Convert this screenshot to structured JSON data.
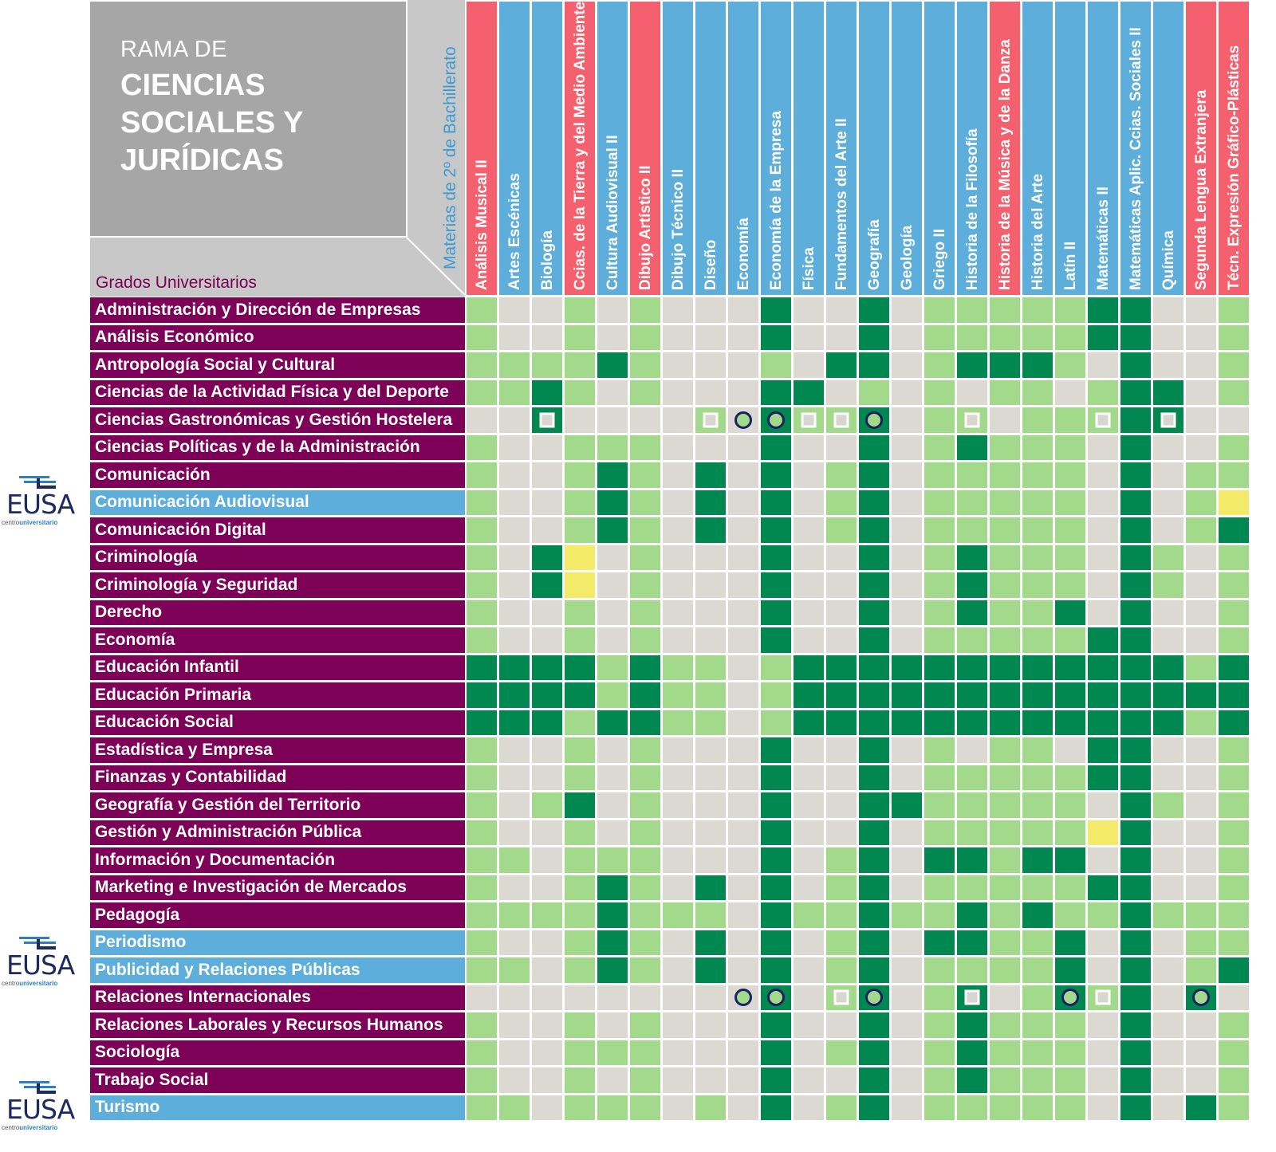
{
  "header": {
    "title_line1": "RAMA DE",
    "title_line2": "CIENCIAS SOCIALES Y JURÍDICAS",
    "rows_label": "Grados Universitarios",
    "columns_label": "Materias de 2º de Bachillerato"
  },
  "colors": {
    "none": "#dcd8d2",
    "light": "#a2d98b",
    "dark": "#008850",
    "yellow": "#f3ea6a",
    "col_blue": "#5eaedc",
    "col_red": "#f4606e",
    "row_purple": "#7e0158",
    "row_blue": "#5eaedc"
  },
  "logo": {
    "name": "EUSA",
    "sub_prefix": "centro",
    "sub_bold": "universitario"
  },
  "chart_data": {
    "type": "heatmap",
    "title": "RAMA DE CIENCIAS SOCIALES Y JURÍDICAS",
    "xlabel": "Materias de 2º de Bachillerato",
    "ylabel": "Grados Universitarios",
    "legend_codes": {
      "G": "none",
      "L": "light",
      "D": "dark",
      "Y": "yellow"
    },
    "columns": [
      {
        "name": "Análisis Musical II",
        "color": "red"
      },
      {
        "name": "Artes Escénicas",
        "color": "blue"
      },
      {
        "name": "Biología",
        "color": "blue"
      },
      {
        "name": "Ccias. de la Tierra y del Medio Ambiente",
        "color": "red"
      },
      {
        "name": "Cultura Audiovisual II",
        "color": "blue"
      },
      {
        "name": "Dibujo Artístico II",
        "color": "red"
      },
      {
        "name": "Dibujo Técnico II",
        "color": "blue"
      },
      {
        "name": "Diseño",
        "color": "blue"
      },
      {
        "name": "Economía",
        "color": "blue"
      },
      {
        "name": "Economía de la Empresa",
        "color": "blue"
      },
      {
        "name": "Física",
        "color": "blue"
      },
      {
        "name": "Fundamentos del Arte II",
        "color": "blue"
      },
      {
        "name": "Geografía",
        "color": "blue"
      },
      {
        "name": "Geología",
        "color": "blue"
      },
      {
        "name": "Griego II",
        "color": "blue"
      },
      {
        "name": "Historia de la Filosofía",
        "color": "blue"
      },
      {
        "name": "Historia de la Música y de la Danza",
        "color": "red"
      },
      {
        "name": "Historia del Arte",
        "color": "blue"
      },
      {
        "name": "Latín II",
        "color": "blue"
      },
      {
        "name": "Matemáticas II",
        "color": "blue"
      },
      {
        "name": "Matemáticas Aplic. Ccias. Sociales II",
        "color": "blue"
      },
      {
        "name": "Química",
        "color": "blue"
      },
      {
        "name": "Segunda Lengua Extranjera",
        "color": "red"
      },
      {
        "name": "Técn. Expresión Gráfico-Plásticas",
        "color": "red"
      }
    ],
    "rows": [
      {
        "name": "Administración y Dirección de Empresas",
        "color": "purple",
        "cells": "LGGLGLGGGDGGDGLLLLLDDGGL"
      },
      {
        "name": "Análisis Económico",
        "color": "purple",
        "cells": "LGGLGLGGGDGGDGLLLLLDDGGL"
      },
      {
        "name": "Antropología Social y Cultural",
        "color": "purple",
        "cells": "LLLLDLGGGLGDDGLDDDLGDGGL"
      },
      {
        "name": "Ciencias de la Actividad Física y del Deporte",
        "color": "purple",
        "cells": "LLDLGLGGGDDGLGLGLLGLDDGL"
      },
      {
        "name": "Ciencias Gastronómicas y Gestión Hostelera",
        "color": "purple",
        "cells": "GGDGGGGLGDLLDGLLGLLLDDGG",
        "markers": {
          "2": "square",
          "7": "square",
          "8": "circle",
          "9": "circle",
          "10": "square",
          "11": "square",
          "12": "circle",
          "15": "square",
          "19": "square",
          "21": "square"
        }
      },
      {
        "name": "Ciencias Políticas y de la Administración",
        "color": "purple",
        "cells": "LGGLLLGGGDGGDGLDLLLGDGGL"
      },
      {
        "name": "Comunicación",
        "color": "purple",
        "cells": "LGGLDLGDGDGLDGLLLLLGDGLL"
      },
      {
        "name": "Comunicación Audiovisual",
        "color": "blue",
        "cells": "LGGLDLGDGDGLDGLLLLLGDGLY"
      },
      {
        "name": "Comunicación Digital",
        "color": "purple",
        "cells": "LGGLDLGDGDGLDGLLLLLGDGLD"
      },
      {
        "name": "Criminología",
        "color": "purple",
        "cells": "LGDYGLGGGDGGDGLDLLLGDLGL"
      },
      {
        "name": "Criminología y Seguridad",
        "color": "purple",
        "cells": "LGDYGLGGGDGGDGLDLLLGDLGL"
      },
      {
        "name": "Derecho",
        "color": "purple",
        "cells": "LGGLGLGGGDGGDGLDLLDGDGGL"
      },
      {
        "name": "Economía",
        "color": "purple",
        "cells": "LGGLGLGGGDGGDGLLLLLDDGGL"
      },
      {
        "name": "Educación Infantil",
        "color": "purple",
        "cells": "DDDDLDLLGLDDDDDDDDDDDDLD"
      },
      {
        "name": "Educación Primaria",
        "color": "purple",
        "cells": "DDDDLDLLGLDDDDDDDDDDDDDD"
      },
      {
        "name": "Educación Social",
        "color": "purple",
        "cells": "DDDLDDLLGLDDDDDDDDDDDDLD"
      },
      {
        "name": "Estadística y Empresa",
        "color": "purple",
        "cells": "LGGLGLGGGDGGDGLGLLGDDGGL"
      },
      {
        "name": "Finanzas y Contabilidad",
        "color": "purple",
        "cells": "LGGLGLGGGDGGDGLLLLLDDGGL"
      },
      {
        "name": "Geografía y Gestión del Territorio",
        "color": "purple",
        "cells": "LGLDGLGGGDGGDDLLLLLGDLGL"
      },
      {
        "name": "Gestión y Administración Pública",
        "color": "purple",
        "cells": "LGGLGLGGGDGGDGLLLLLYDGGL"
      },
      {
        "name": "Información y Documentación",
        "color": "purple",
        "cells": "LLGLLLGGGDGLDGDDLDDGDGGL"
      },
      {
        "name": "Marketing e Investigación de Mercados",
        "color": "purple",
        "cells": "LGGLDLGDGDGLDGLLLLLDDGGL"
      },
      {
        "name": "Pedagogía",
        "color": "purple",
        "cells": "LLLLDLLLGDLLDLLDLDLLDLLL"
      },
      {
        "name": "Periodismo",
        "color": "blue",
        "cells": "LGGLDLGDGDGLDGDDLLDGDGLL"
      },
      {
        "name": "Publicidad y Relaciones Públicas",
        "color": "blue",
        "cells": "LLGLDLGDGDGLDGLLLLDGDGLD"
      },
      {
        "name": "Relaciones Internacionales",
        "color": "purple",
        "cells": "GGGGGGGGGDGLDGLDGLDLDGDG",
        "markers": {
          "8": "circle",
          "9": "circle",
          "11": "square",
          "12": "circle",
          "15": "square",
          "18": "circle",
          "19": "square",
          "22": "circle"
        }
      },
      {
        "name": "Relaciones Laborales y Recursos Humanos",
        "color": "purple",
        "cells": "LGGLGLGGGDGGDGLDLLLGDGGL"
      },
      {
        "name": "Sociología",
        "color": "purple",
        "cells": "LGGLLLGGGDGLDGLDLLLGDGGL"
      },
      {
        "name": "Trabajo Social",
        "color": "purple",
        "cells": "LGGLGLGGGDGGDGLDLLLGDGGL"
      },
      {
        "name": "Turismo",
        "color": "blue",
        "cells": "LLGLLLGLGDGLDGLLLLLGDGDL"
      }
    ]
  }
}
